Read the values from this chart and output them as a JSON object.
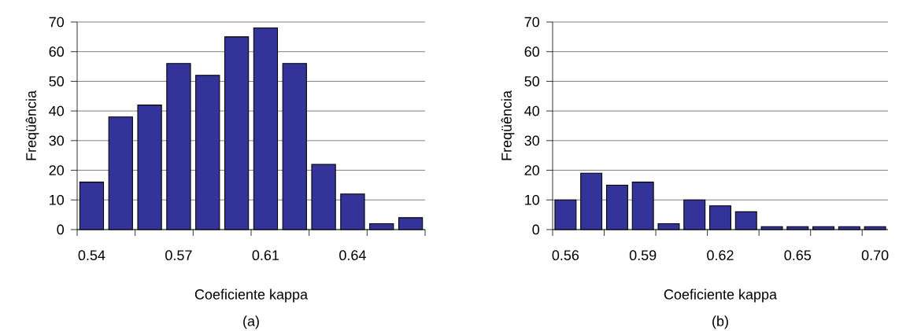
{
  "chart_data": [
    {
      "type": "bar",
      "xlabel": "Coeficiente kappa",
      "ylabel": "Freqüência",
      "annotations": [
        "(a)"
      ],
      "color": "#333399",
      "categories": [
        "0.54",
        null,
        null,
        "0.57",
        null,
        null,
        "0.61",
        null,
        null,
        "0.64",
        null,
        null
      ],
      "values": [
        16,
        38,
        42,
        56,
        52,
        65,
        68,
        56,
        22,
        12,
        2,
        4
      ],
      "ylim": [
        0,
        70
      ],
      "yticks": [
        0,
        10,
        20,
        30,
        40,
        50,
        60,
        70
      ],
      "grid": "y"
    },
    {
      "type": "bar",
      "xlabel": "Coeficiente kappa",
      "ylabel": "Freqüência",
      "annotations": [
        "(b)"
      ],
      "color": "#333399",
      "categories": [
        "0.56",
        null,
        null,
        "0.59",
        null,
        null,
        "0.62",
        null,
        null,
        "0.65",
        null,
        null,
        "0.70"
      ],
      "values": [
        10,
        19,
        15,
        16,
        2,
        10,
        8,
        6,
        1,
        1,
        1,
        1,
        1
      ],
      "ylim": [
        0,
        70
      ],
      "yticks": [
        0,
        10,
        20,
        30,
        40,
        50,
        60,
        70
      ],
      "grid": "y"
    }
  ]
}
